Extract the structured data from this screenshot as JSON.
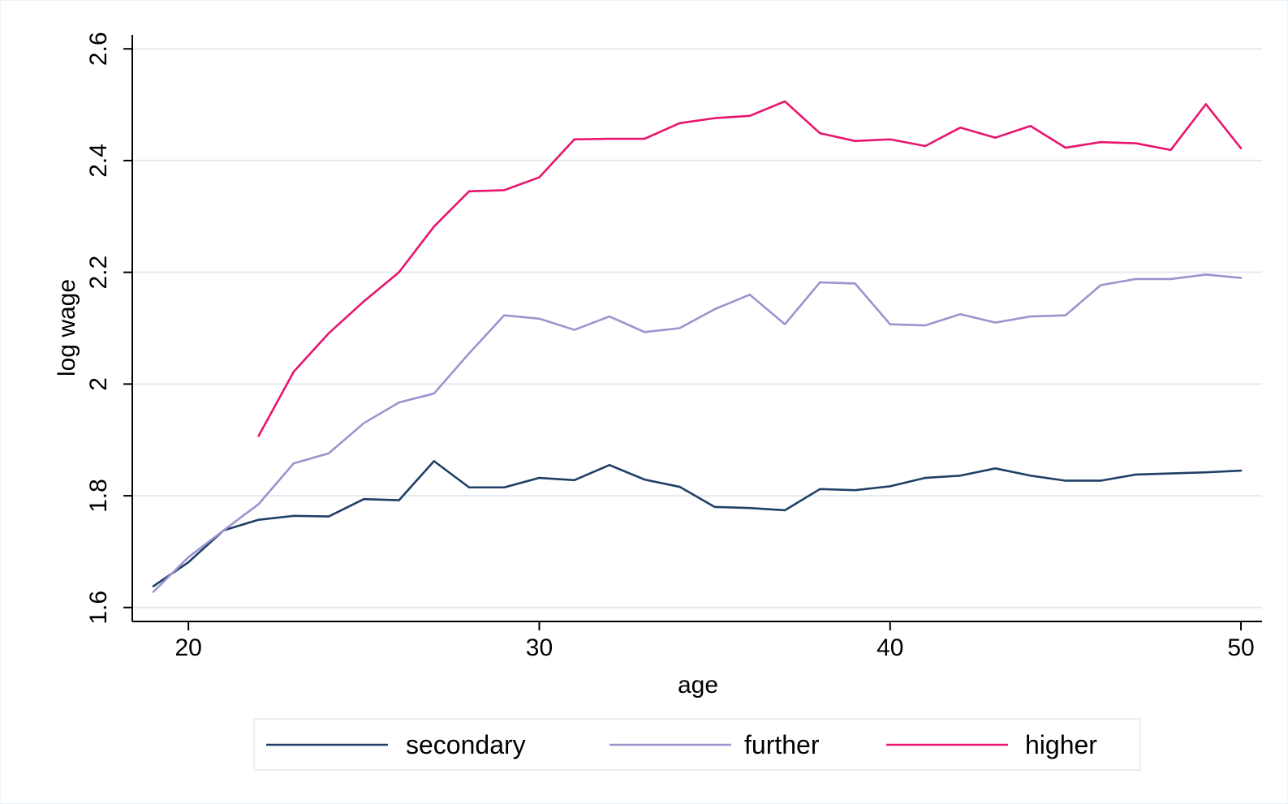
{
  "chart_data": {
    "type": "line",
    "title": "",
    "xlabel": "age",
    "ylabel": "log wage",
    "xlim": [
      18.4,
      50.6
    ],
    "ylim": [
      1.575,
      2.625
    ],
    "x_ticks": [
      20,
      30,
      40,
      50
    ],
    "y_ticks": [
      1.6,
      1.8,
      2.0,
      2.2,
      2.4,
      2.6
    ],
    "x_tick_labels": [
      "20",
      "30",
      "40",
      "50"
    ],
    "y_tick_labels": [
      "1.6",
      "1.8",
      "2",
      "2.2",
      "2.4",
      "2.6"
    ],
    "grid": "horizontal",
    "legend_position": "bottom",
    "series": [
      {
        "name": "secondary",
        "color": "#1f3f66",
        "x": [
          19,
          20,
          21,
          22,
          23,
          24,
          25,
          26,
          27,
          28,
          29,
          30,
          31,
          32,
          33,
          34,
          35,
          36,
          37,
          38,
          39,
          40,
          41,
          42,
          43,
          44,
          45,
          46,
          47,
          48,
          49,
          50
        ],
        "y": [
          1.638,
          1.681,
          1.738,
          1.757,
          1.764,
          1.763,
          1.794,
          1.792,
          1.862,
          1.815,
          1.815,
          1.832,
          1.828,
          1.855,
          1.829,
          1.816,
          1.78,
          1.778,
          1.774,
          1.812,
          1.81,
          1.817,
          1.832,
          1.836,
          1.849,
          1.836,
          1.827,
          1.827,
          1.838,
          1.84,
          1.842,
          1.845
        ]
      },
      {
        "name": "further",
        "color": "#9b94cf",
        "x": [
          19,
          20,
          21,
          22,
          23,
          24,
          25,
          26,
          27,
          28,
          29,
          30,
          31,
          32,
          33,
          34,
          35,
          36,
          37,
          38,
          39,
          40,
          41,
          42,
          43,
          44,
          45,
          46,
          47,
          48,
          49,
          50
        ],
        "y": [
          1.628,
          1.69,
          1.738,
          1.785,
          1.858,
          1.876,
          1.93,
          1.967,
          1.983,
          2.055,
          2.123,
          2.117,
          2.097,
          2.121,
          2.093,
          2.1,
          2.134,
          2.16,
          2.107,
          2.182,
          2.18,
          2.107,
          2.105,
          2.125,
          2.11,
          2.121,
          2.123,
          2.177,
          2.188,
          2.188,
          2.196,
          2.19
        ]
      },
      {
        "name": "higher",
        "color": "#e8146e",
        "x": [
          22,
          23,
          24,
          25,
          26,
          27,
          28,
          29,
          30,
          31,
          32,
          33,
          34,
          35,
          36,
          37,
          38,
          39,
          40,
          41,
          42,
          43,
          44,
          45,
          46,
          47,
          48,
          49,
          50
        ],
        "y": [
          1.907,
          2.022,
          2.091,
          2.148,
          2.2,
          2.282,
          2.345,
          2.347,
          2.37,
          2.438,
          2.439,
          2.439,
          2.467,
          2.476,
          2.48,
          2.506,
          2.449,
          2.435,
          2.438,
          2.426,
          2.459,
          2.441,
          2.462,
          2.423,
          2.433,
          2.431,
          2.419,
          2.501,
          2.422
        ]
      }
    ]
  }
}
